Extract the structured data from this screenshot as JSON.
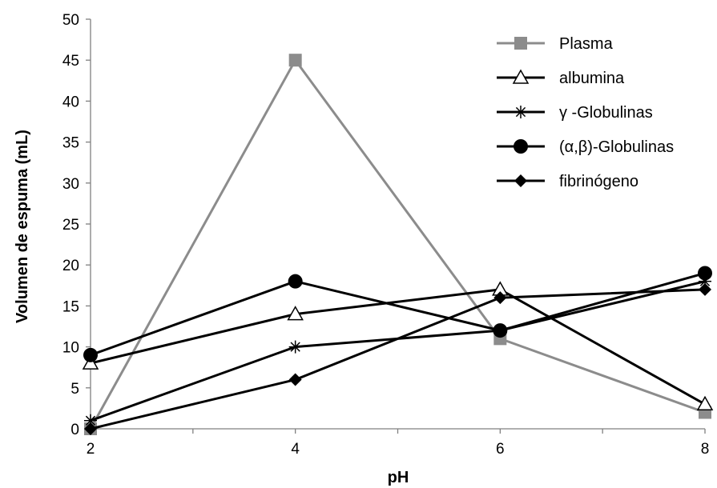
{
  "chart_data": {
    "type": "line",
    "title": "",
    "xlabel": "pH",
    "ylabel": "Volumen de espuma (mL)",
    "x": [
      2,
      4,
      6,
      8
    ],
    "xlim": [
      2,
      8
    ],
    "ylim": [
      0,
      50
    ],
    "xticks": [
      "2",
      "4",
      "6",
      "8"
    ],
    "yticks": [
      "0",
      "5",
      "10",
      "15",
      "20",
      "25",
      "30",
      "35",
      "40",
      "45",
      "50"
    ],
    "grid": false,
    "legend_position": "top-right",
    "series": [
      {
        "name": "Plasma",
        "values": [
          0,
          45,
          11,
          2
        ],
        "color": "#8c8c8c",
        "marker": "square"
      },
      {
        "name": "albumina",
        "values": [
          8,
          14,
          17,
          3
        ],
        "color": "#000000",
        "marker": "triangle-open"
      },
      {
        "name": "γ -Globulinas",
        "values": [
          1,
          10,
          12,
          18
        ],
        "color": "#000000",
        "marker": "asterisk"
      },
      {
        "name": "(α,β)-Globulinas",
        "values": [
          9,
          18,
          12,
          19
        ],
        "color": "#000000",
        "marker": "circle"
      },
      {
        "name": "fibrinógeno",
        "values": [
          0,
          6,
          16,
          17
        ],
        "color": "#000000",
        "marker": "diamond"
      }
    ]
  }
}
